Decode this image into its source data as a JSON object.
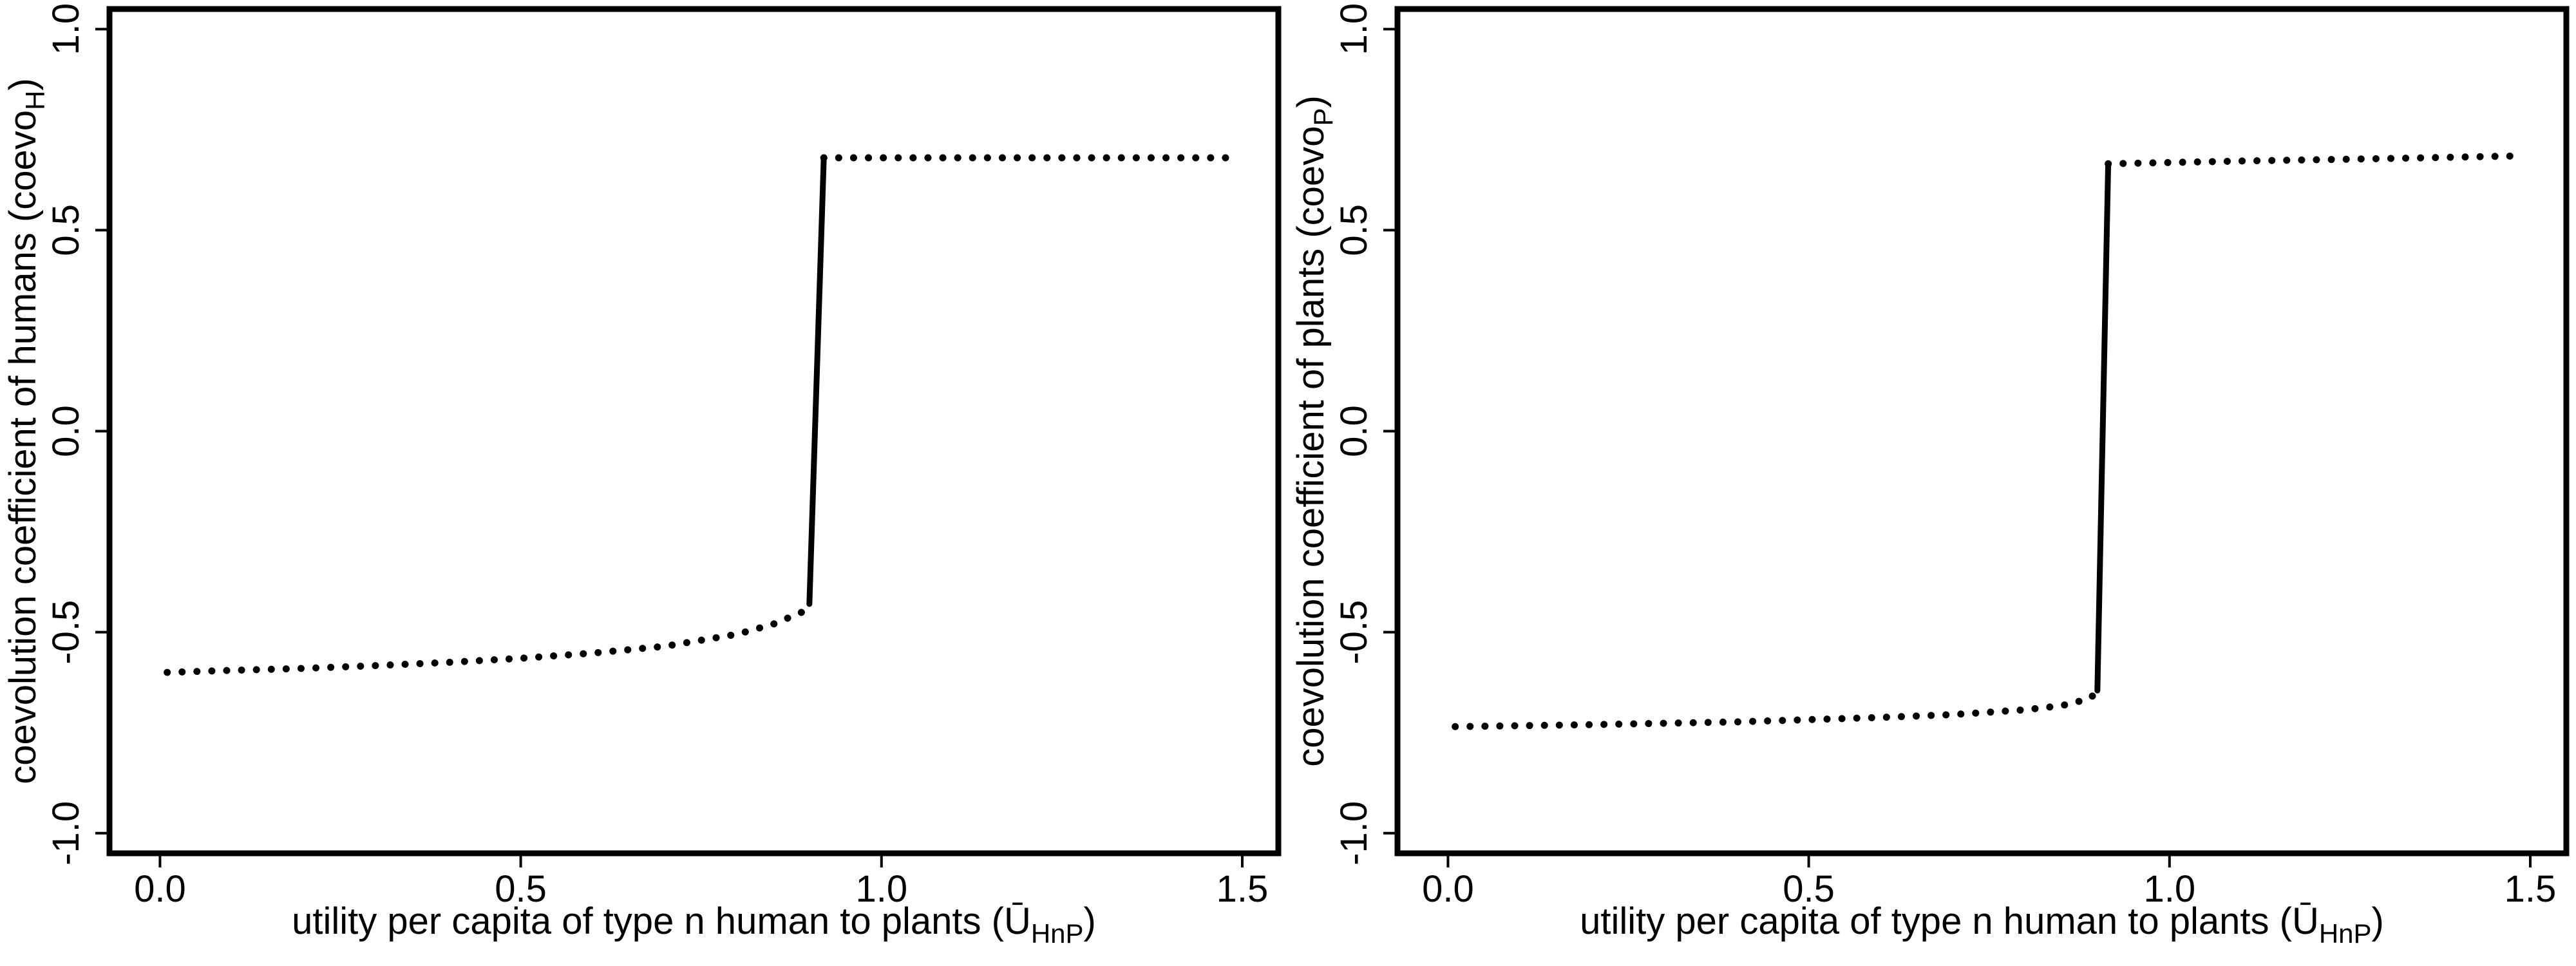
{
  "chart_data": [
    {
      "type": "scatter",
      "xlabel": "utility per capita of type n human to plants (Ū",
      "xlabel_sub": "HnP",
      "xlabel_tail": ")",
      "ylabel": "coevolution coefficient of humans (coevo",
      "ylabel_sub": "H",
      "ylabel_tail": ")",
      "xlim": [
        -0.07,
        1.55
      ],
      "ylim": [
        -1.05,
        1.05
      ],
      "xticks": [
        "0.0",
        "0.5",
        "1.0",
        "1.5"
      ],
      "yticks": [
        "-1.0",
        "-0.5",
        "0.0",
        "0.5",
        "1.0"
      ],
      "grid": false,
      "series": [
        {
          "style": "dotted",
          "points": [
            [
              0.01,
              -0.6
            ],
            [
              0.1,
              -0.595
            ],
            [
              0.2,
              -0.59
            ],
            [
              0.3,
              -0.583
            ],
            [
              0.4,
              -0.575
            ],
            [
              0.5,
              -0.565
            ],
            [
              0.6,
              -0.552
            ],
            [
              0.7,
              -0.535
            ],
            [
              0.8,
              -0.505
            ],
            [
              0.85,
              -0.48
            ],
            [
              0.89,
              -0.45
            ],
            [
              0.9,
              -0.43
            ]
          ]
        },
        {
          "style": "solid",
          "points": [
            [
              0.9,
              -0.43
            ],
            [
              0.92,
              0.68
            ]
          ]
        },
        {
          "style": "dotted",
          "points": [
            [
              0.92,
              0.68
            ],
            [
              1.1,
              0.68
            ],
            [
              1.3,
              0.68
            ],
            [
              1.49,
              0.68
            ]
          ]
        }
      ]
    },
    {
      "type": "scatter",
      "xlabel": "utility per capita of type n human to plants (Ū",
      "xlabel_sub": "HnP",
      "xlabel_tail": ")",
      "ylabel": "coevolution coefficient of plants (coevo",
      "ylabel_sub": "P",
      "ylabel_tail": ")",
      "xlim": [
        -0.07,
        1.55
      ],
      "ylim": [
        -1.05,
        1.05
      ],
      "xticks": [
        "0.0",
        "0.5",
        "1.0",
        "1.5"
      ],
      "yticks": [
        "-1.0",
        "-0.5",
        "0.0",
        "0.5",
        "1.0"
      ],
      "grid": false,
      "series": [
        {
          "style": "dotted",
          "points": [
            [
              0.01,
              -0.735
            ],
            [
              0.2,
              -0.73
            ],
            [
              0.4,
              -0.723
            ],
            [
              0.6,
              -0.712
            ],
            [
              0.7,
              -0.705
            ],
            [
              0.8,
              -0.693
            ],
            [
              0.85,
              -0.683
            ],
            [
              0.89,
              -0.665
            ],
            [
              0.9,
              -0.645
            ]
          ]
        },
        {
          "style": "solid",
          "points": [
            [
              0.9,
              -0.645
            ],
            [
              0.915,
              0.665
            ]
          ]
        },
        {
          "style": "dotted",
          "points": [
            [
              0.915,
              0.665
            ],
            [
              1.1,
              0.672
            ],
            [
              1.3,
              0.678
            ],
            [
              1.49,
              0.685
            ]
          ]
        }
      ]
    }
  ]
}
